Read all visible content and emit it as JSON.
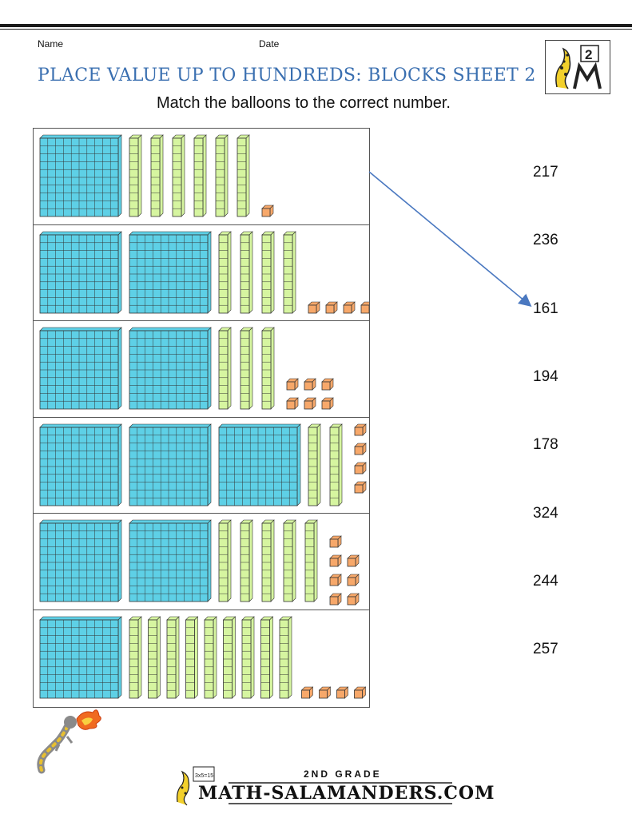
{
  "header": {
    "name_label": "Name",
    "date_label": "Date",
    "title": "PLACE VALUE UP TO HUNDREDS: BLOCKS SHEET 2",
    "instructions": "Match the balloons to the correct number.",
    "logo_grade": "2"
  },
  "colors": {
    "title": "#3a6fb0",
    "hundreds_fill": "#5ed0e6",
    "tens_fill": "#d6f5a0",
    "ones_fill": "#f7a86a",
    "arrow": "#4a78c0"
  },
  "block_rows": [
    {
      "hundreds": 1,
      "tens": 6,
      "ones": 1
    },
    {
      "hundreds": 2,
      "tens": 4,
      "ones": 4
    },
    {
      "hundreds": 2,
      "tens": 3,
      "ones": 6
    },
    {
      "hundreds": 3,
      "tens": 2,
      "ones": 4
    },
    {
      "hundreds": 2,
      "tens": 5,
      "ones": 7
    },
    {
      "hundreds": 1,
      "tens": 9,
      "ones": 4
    }
  ],
  "numbers": [
    "217",
    "236",
    "161",
    "194",
    "178",
    "324",
    "244",
    "257"
  ],
  "example_match": {
    "row": 1,
    "number": "161"
  },
  "footer": {
    "grade_text": "2ND GRADE",
    "site_text": "MATH-SALAMANDERS.COM",
    "sign_text": "3x5=15"
  }
}
